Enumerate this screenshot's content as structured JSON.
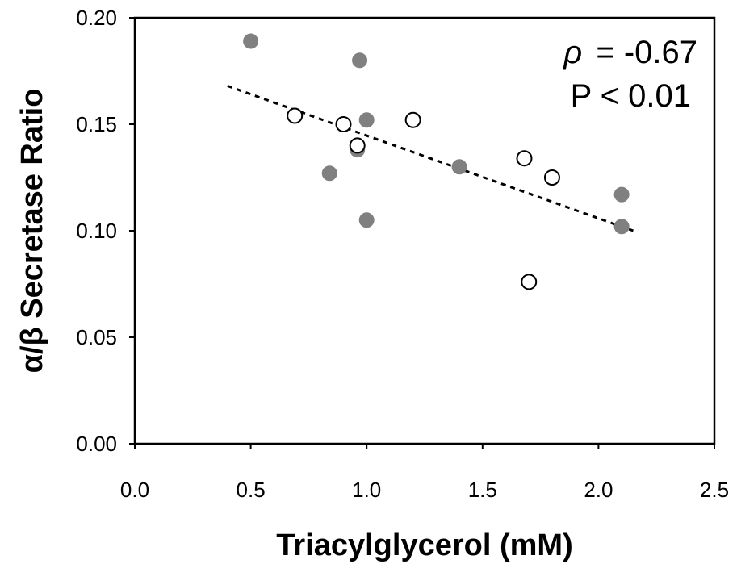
{
  "chart_data": {
    "type": "scatter",
    "title": "",
    "xlabel": "Triacylglycerol (mM)",
    "ylabel": "α/β Secretase Ratio",
    "xlim": [
      0,
      2.5
    ],
    "ylim": [
      0,
      0.2
    ],
    "x_ticks": [
      "0.0",
      "0.5",
      "1.0",
      "1.5",
      "2.0",
      "2.5"
    ],
    "y_ticks": [
      "0.00",
      "0.05",
      "0.10",
      "0.15",
      "0.20"
    ],
    "grid": false,
    "legend": "none",
    "annotations": {
      "rho_symbol": "ρ",
      "rho_value": "= -0.67",
      "p_value": "P < 0.01"
    },
    "series": [
      {
        "marker": "filled-circle",
        "color": "#808080",
        "points": [
          {
            "x": 0.5,
            "y": 0.189
          },
          {
            "x": 0.97,
            "y": 0.18
          },
          {
            "x": 1.0,
            "y": 0.152
          },
          {
            "x": 0.96,
            "y": 0.138
          },
          {
            "x": 0.84,
            "y": 0.127
          },
          {
            "x": 1.0,
            "y": 0.105
          },
          {
            "x": 1.4,
            "y": 0.13
          },
          {
            "x": 2.1,
            "y": 0.117
          },
          {
            "x": 2.1,
            "y": 0.102
          }
        ]
      },
      {
        "marker": "open-circle",
        "color": "#000000",
        "points": [
          {
            "x": 0.69,
            "y": 0.154
          },
          {
            "x": 0.9,
            "y": 0.15
          },
          {
            "x": 1.2,
            "y": 0.152
          },
          {
            "x": 0.96,
            "y": 0.14
          },
          {
            "x": 1.68,
            "y": 0.134
          },
          {
            "x": 1.8,
            "y": 0.125
          },
          {
            "x": 1.7,
            "y": 0.076
          }
        ]
      }
    ],
    "trendline": {
      "style": "dotted",
      "x": [
        0.4,
        2.15
      ],
      "y": [
        0.168,
        0.1
      ]
    }
  }
}
